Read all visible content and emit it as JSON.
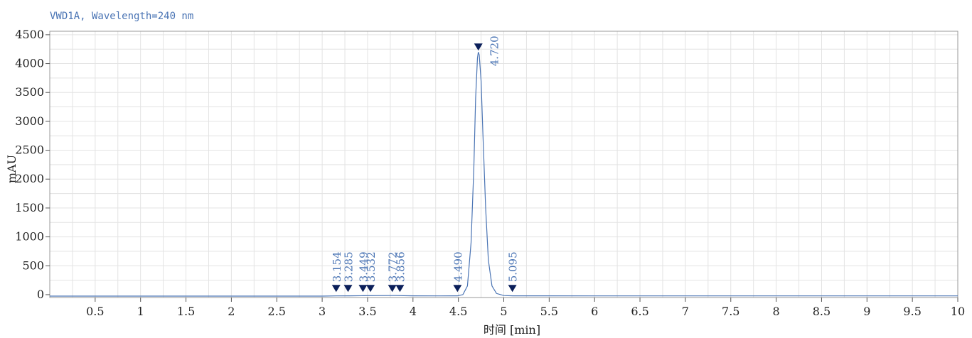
{
  "chart_data": {
    "type": "line",
    "title": "VWD1A, Wavelength=240 nm",
    "xlabel": "时间 [min]",
    "ylabel": "mAU",
    "xlim": [
      0,
      10
    ],
    "ylim": [
      -50,
      4560
    ],
    "x_ticks": [
      0.5,
      1,
      1.5,
      2,
      2.5,
      3,
      3.5,
      4,
      4.5,
      5,
      5.5,
      6,
      6.5,
      7,
      7.5,
      8,
      8.5,
      9,
      9.5,
      10
    ],
    "x_tick_labels": [
      "0.5",
      "1",
      "1.5",
      "2",
      "2.5",
      "3",
      "3.5",
      "4",
      "4.5",
      "5",
      "5.5",
      "6",
      "6.5",
      "7",
      "7.5",
      "8",
      "8.5",
      "9",
      "9.5",
      "10"
    ],
    "y_ticks": [
      0,
      500,
      1000,
      1500,
      2000,
      2500,
      3000,
      3500,
      4000,
      4500
    ],
    "y_tick_labels": [
      "0",
      "500",
      "1000",
      "1500",
      "2000",
      "2500",
      "3000",
      "3500",
      "4000",
      "4500"
    ],
    "grid": true,
    "line_color": "#4a74b4",
    "peak_marker_color": "#0b1f5a",
    "series": [
      {
        "x": [
          0,
          3.0,
          3.15,
          3.3,
          3.45,
          3.6,
          3.8,
          4.0,
          4.3,
          4.49,
          4.55,
          4.6,
          4.64,
          4.67,
          4.69,
          4.71,
          4.72,
          4.73,
          4.75,
          4.77,
          4.8,
          4.83,
          4.87,
          4.92,
          5.0,
          5.1,
          6.0,
          10
        ],
        "y": [
          -25,
          -25,
          -22,
          -20,
          -18,
          -17,
          -15,
          -20,
          -22,
          -20,
          0,
          150,
          900,
          2200,
          3400,
          4100,
          4200,
          4150,
          3700,
          2800,
          1500,
          600,
          150,
          20,
          -15,
          -20,
          -22,
          -22
        ]
      }
    ],
    "peaks": [
      {
        "label": "3.154",
        "x": 3.154,
        "y": 20
      },
      {
        "label": "3.285",
        "x": 3.285,
        "y": 20
      },
      {
        "label": "3.449",
        "x": 3.449,
        "y": 20
      },
      {
        "label": "3.532",
        "x": 3.532,
        "y": 20
      },
      {
        "label": "3.772",
        "x": 3.772,
        "y": 20
      },
      {
        "label": "3.856",
        "x": 3.856,
        "y": 20
      },
      {
        "label": "4.490",
        "x": 4.49,
        "y": 20
      },
      {
        "label": "4.720",
        "x": 4.72,
        "y": 4200
      },
      {
        "label": "5.095",
        "x": 5.095,
        "y": 20
      }
    ]
  }
}
